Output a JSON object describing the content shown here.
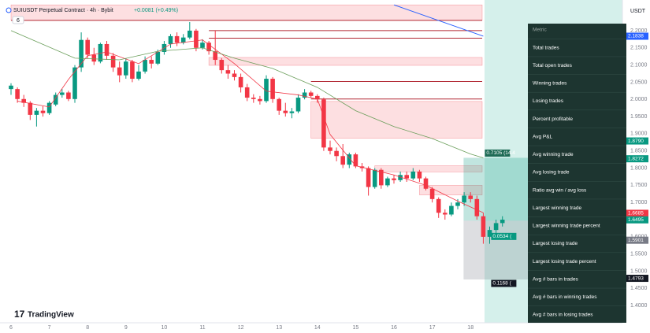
{
  "header": {
    "symbol": "SUIUSDT Perpetual Contract · 4h · Bybit",
    "change": "+0.0081 (+0.49%)",
    "badge": "6",
    "currency": "USDT",
    "logo": "TradingView"
  },
  "chart_data": {
    "type": "candlestick",
    "x_labels": [
      "6",
      "7",
      "8",
      "9",
      "10",
      "11",
      "12",
      "13",
      "14",
      "15",
      "16",
      "17",
      "18"
    ],
    "open": [
      2.03,
      2.03,
      2.001,
      1.99,
      1.955,
      1.967,
      1.96,
      1.985,
      2.013,
      2.02,
      2.001,
      2.093,
      2.173,
      2.13,
      2.11,
      2.161,
      2.127,
      2.093,
      2.07,
      2.11,
      2.06,
      2.081,
      2.115,
      2.104,
      2.138,
      2.161,
      2.184,
      2.165,
      2.18,
      2.2,
      2.15,
      2.165,
      2.14,
      2.115,
      2.085,
      2.075,
      2.065,
      2.035,
      2.005,
      2.001,
      1.995,
      2.06,
      2.001,
      1.967,
      1.96,
      1.965,
      2.005,
      2.02,
      2.01,
      2.0,
      1.86,
      1.85,
      1.835,
      1.81,
      1.84,
      1.805,
      1.8,
      1.745,
      1.795,
      1.75,
      1.77,
      1.765,
      1.78,
      1.77,
      1.79,
      1.77,
      1.74,
      1.71,
      1.67,
      1.665,
      1.69,
      1.7,
      1.72,
      1.71,
      1.66,
      1.6,
      1.62,
      1.64
    ],
    "high": [
      2.047,
      2.035,
      2.013,
      1.995,
      1.975,
      1.98,
      1.995,
      2.02,
      2.03,
      2.025,
      2.1,
      2.195,
      2.18,
      2.15,
      2.165,
      2.17,
      2.135,
      2.11,
      2.12,
      2.115,
      2.1,
      2.125,
      2.125,
      2.145,
      2.17,
      2.19,
      2.195,
      2.19,
      2.225,
      2.205,
      2.175,
      2.17,
      2.2,
      2.12,
      2.1,
      2.085,
      2.075,
      2.045,
      2.015,
      2.01,
      2.07,
      2.065,
      2.005,
      1.99,
      1.975,
      2.015,
      2.03,
      2.025,
      2.015,
      2.005,
      1.88,
      1.86,
      1.87,
      1.845,
      1.845,
      1.815,
      1.805,
      1.8,
      1.8,
      1.775,
      1.78,
      1.79,
      1.79,
      1.8,
      1.795,
      1.775,
      1.745,
      1.715,
      1.68,
      1.7,
      1.71,
      1.73,
      1.73,
      1.72,
      1.67,
      1.63,
      1.65,
      1.66
    ],
    "low": [
      2.013,
      1.99,
      1.978,
      1.94,
      1.921,
      1.95,
      1.955,
      1.98,
      2.005,
      1.995,
      1.99,
      2.08,
      2.12,
      2.1,
      2.105,
      2.115,
      2.08,
      2.05,
      2.06,
      2.05,
      2.055,
      2.075,
      2.09,
      2.1,
      2.13,
      2.15,
      2.155,
      2.16,
      2.175,
      2.14,
      2.145,
      2.13,
      2.1,
      2.075,
      2.06,
      2.055,
      2.02,
      1.995,
      1.99,
      1.985,
      1.99,
      1.99,
      1.955,
      1.95,
      1.945,
      1.96,
      2.0,
      2.005,
      1.99,
      1.85,
      1.84,
      1.82,
      1.8,
      1.8,
      1.8,
      1.79,
      1.72,
      1.74,
      1.74,
      1.745,
      1.755,
      1.76,
      1.76,
      1.765,
      1.76,
      1.735,
      1.7,
      1.655,
      1.65,
      1.66,
      1.68,
      1.69,
      1.7,
      1.65,
      1.58,
      1.58,
      1.6,
      1.63
    ],
    "close": [
      2.04,
      2.001,
      1.99,
      1.955,
      1.967,
      1.96,
      1.99,
      2.013,
      2.02,
      2.001,
      2.093,
      2.173,
      2.13,
      2.11,
      2.161,
      2.127,
      2.093,
      2.07,
      2.11,
      2.06,
      2.081,
      2.115,
      2.104,
      2.138,
      2.161,
      2.184,
      2.165,
      2.18,
      2.2,
      2.15,
      2.165,
      2.14,
      2.115,
      2.085,
      2.075,
      2.065,
      2.035,
      2.005,
      2.001,
      1.995,
      2.06,
      2.001,
      1.967,
      1.96,
      1.965,
      2.005,
      2.02,
      2.01,
      2.0,
      1.86,
      1.85,
      1.835,
      1.81,
      1.84,
      1.805,
      1.8,
      1.745,
      1.795,
      1.75,
      1.77,
      1.765,
      1.78,
      1.77,
      1.79,
      1.77,
      1.74,
      1.71,
      1.67,
      1.665,
      1.69,
      1.7,
      1.72,
      1.71,
      1.66,
      1.6,
      1.62,
      1.64,
      1.65
    ],
    "up_color": "#089981",
    "down_color": "#f23645",
    "ylim": [
      1.35,
      2.28
    ],
    "yticks": [
      {
        "value": 2.2,
        "label": "2.2000"
      },
      {
        "value": 2.15,
        "label": "2.1500"
      },
      {
        "value": 2.1,
        "label": "2.1000"
      },
      {
        "value": 2.05,
        "label": "2.0500"
      },
      {
        "value": 2.0,
        "label": "2.0000"
      },
      {
        "value": 1.95,
        "label": "1.9500"
      },
      {
        "value": 1.9,
        "label": "1.9000"
      },
      {
        "value": 1.85,
        "label": "1.8500"
      },
      {
        "value": 1.8,
        "label": "1.8000"
      },
      {
        "value": 1.75,
        "label": "1.7500"
      },
      {
        "value": 1.7,
        "label": "1.7000"
      },
      {
        "value": 1.65,
        "label": "1.6500"
      },
      {
        "value": 1.6,
        "label": "1.6000"
      },
      {
        "value": 1.55,
        "label": "1.5500"
      },
      {
        "value": 1.5,
        "label": "1.5000"
      },
      {
        "value": 1.45,
        "label": "1.4500"
      },
      {
        "value": 1.4,
        "label": "1.4000"
      }
    ],
    "moving_averages": [
      {
        "color": "#f23645",
        "x": [
          1,
          6,
          9,
          12,
          15,
          20,
          25,
          30,
          35,
          40,
          45,
          48,
          50,
          54,
          60,
          65,
          70,
          74
        ],
        "values": [
          1.995,
          1.978,
          2.058,
          2.127,
          2.138,
          2.104,
          2.161,
          2.173,
          2.104,
          2.024,
          2.013,
          2.001,
          1.898,
          1.807,
          1.78,
          1.75,
          1.704,
          1.67
        ]
      },
      {
        "color": "#6a9e5a",
        "x": [
          0,
          10,
          17,
          23,
          30,
          35,
          41,
          48,
          54,
          60,
          66,
          72,
          74
        ],
        "values": [
          2.2,
          2.12,
          2.115,
          2.14,
          2.15,
          2.12,
          2.09,
          2.035,
          1.967,
          1.921,
          1.886,
          1.841,
          1.83
        ]
      }
    ],
    "zones": [
      {
        "start": 0,
        "range": [
          2.23,
          2.275
        ]
      },
      {
        "start": 31,
        "range": [
          2.099,
          2.122
        ]
      },
      {
        "start": 47,
        "range": [
          1.887,
          1.994
        ]
      },
      {
        "start": 57,
        "range": [
          1.789,
          1.807
        ]
      },
      {
        "start": 64,
        "range": [
          1.722,
          1.75
        ]
      }
    ],
    "levels": [
      {
        "start": 31,
        "value": 2.2
      },
      {
        "start": 31,
        "value": 2.178
      },
      {
        "start": 47,
        "value": 2.052
      },
      {
        "start": 47,
        "value": 2.001
      },
      {
        "start": 0,
        "value": 2.23
      }
    ],
    "trend_line": {
      "x": [
        60,
        74
      ],
      "values": [
        2.275,
        2.184
      ],
      "color": "#2962ff"
    },
    "position": {
      "start": 74,
      "target": 1.83,
      "entry": 1.647,
      "stop": 1.476,
      "labels": [
        "0.7105 (14.4",
        "0.0534 (",
        "0.1168 ("
      ]
    },
    "price_badges": {
      "values": [
        2.1838,
        {
          "value": 1.879,
          "label": "1.8790"
        },
        1.8272,
        1.6685,
        1.6495,
        1.5901,
        1.4793
      ],
      "colors": [
        "#2962ff",
        "#089981",
        "#089981",
        "#f23645",
        "#089981",
        "#787b86",
        "#131722"
      ]
    }
  },
  "metrics_panel": {
    "header": "Metric",
    "rows": [
      "Total trades",
      "Total open trades",
      "Winning trades",
      "Losing trades",
      "Percent profitable",
      "Avg P&L",
      "Avg winning trade",
      "Avg losing trade",
      "Ratio avg win / avg loss",
      "Largest winning trade",
      "Largest winning trade percent",
      "Largest losing trade",
      "Largest losing trade percent",
      "Avg # bars in trades",
      "Avg # bars in winning trades",
      "Avg # bars in losing trades"
    ]
  }
}
